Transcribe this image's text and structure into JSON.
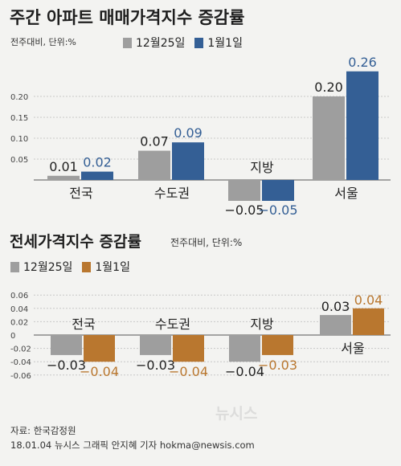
{
  "colors": {
    "gray": "#9e9e9e",
    "blue": "#345f95",
    "orange": "#b9772f",
    "bg": "#f3f3f1"
  },
  "chart_data": [
    {
      "type": "bar",
      "title": "주간 아파트 매매가격지수 증감률",
      "unit_label": "전주대비, 단위:%",
      "categories": [
        "전국",
        "수도권",
        "지방",
        "서울"
      ],
      "series": [
        {
          "name": "12월25일",
          "values": [
            0.01,
            0.07,
            -0.05,
            0.2
          ],
          "labels": [
            "0.01",
            "0.07",
            "−0.05",
            "0.20"
          ]
        },
        {
          "name": "1월1일",
          "values": [
            0.02,
            0.09,
            -0.05,
            0.26
          ],
          "labels": [
            "0.02",
            "0.09",
            "−0.05",
            "0.26"
          ]
        }
      ],
      "yticks": [
        "0.20",
        "0.15",
        "0.10",
        "0.05"
      ],
      "ylim": [
        -0.05,
        0.26
      ]
    },
    {
      "type": "bar",
      "title": "전세가격지수 증감률",
      "unit_label": "전주대비, 단위:%",
      "categories": [
        "전국",
        "수도권",
        "지방",
        "서울"
      ],
      "series": [
        {
          "name": "12월25일",
          "values": [
            -0.03,
            -0.03,
            -0.04,
            0.03
          ],
          "labels": [
            "−0.03",
            "−0.03",
            "−0.04",
            "0.03"
          ]
        },
        {
          "name": "1월1일",
          "values": [
            -0.04,
            -0.04,
            -0.03,
            0.04
          ],
          "labels": [
            "−0.04",
            "−0.04",
            "−0.03",
            "0.04"
          ]
        }
      ],
      "yticks": [
        "0.06",
        "0.04",
        "0.02",
        "0",
        "-0.02",
        "-0.04",
        "-0.06"
      ],
      "ylim": [
        -0.08,
        0.06
      ]
    }
  ],
  "footer": {
    "source": "자료: 한국감정원",
    "credit": "18.01.04 뉴시스 그래픽 안지혜 기자 hokma@newsis.com"
  },
  "watermark": "뉴시스"
}
